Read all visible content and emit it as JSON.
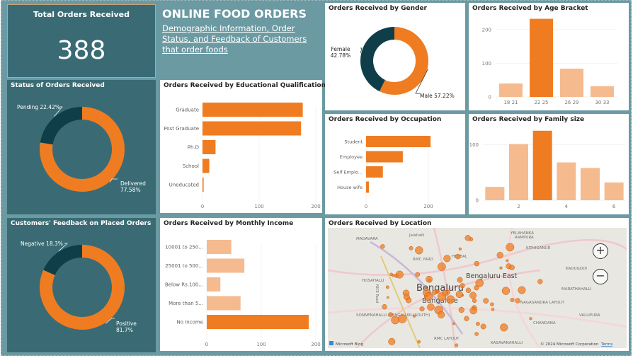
{
  "colors": {
    "orange": "#f07c22",
    "light_orange": "#f6ba8f",
    "dark_teal": "#0f3e48",
    "panel_teal": "#3a6b74",
    "background": "#6b9aa2"
  },
  "header": {
    "title": "ONLINE FOOD ORDERS",
    "subtitle": "Demographic Information, Order Status, and Feedback of Customers that order foods"
  },
  "kpi": {
    "title": "Total Orders Received",
    "value": "388"
  },
  "map": {
    "title": "Orders Received by Location",
    "labels": [
      "Jalahalli",
      "MADAVARA",
      "RAMPURA",
      "KITHIGANUR",
      "RMC YARD",
      "HEBBAL",
      "Bengaluru East",
      "KADUGODI",
      "HOSAHALLI",
      "Bengaluru",
      "Bangalore",
      "MARATHAHALLI",
      "NAGASANDRA LAYOUT",
      "VALLIPURA",
      "SONNENAHALLI (BENGALURU SOUTH)",
      "CHANDANA",
      "YELAHANKA",
      "RMC LAYOUT",
      "KASAVANAHALLI",
      "NICE Road"
    ],
    "attribution_left": "Microsoft Bing",
    "attribution_right": "© 2024 Microsoft Corporation",
    "terms": "Terms",
    "zoom_in": "+",
    "zoom_out": "−"
  },
  "chart_data": [
    {
      "id": "status",
      "type": "pie",
      "title": "Status of Orders Received",
      "labels": [
        "Delivered",
        "Pending"
      ],
      "values": [
        77.58,
        22.42
      ],
      "label_text": [
        "Delivered 77.58%",
        "Pending 22.42%"
      ],
      "colors": [
        "#f07c22",
        "#0f3e48"
      ]
    },
    {
      "id": "feedback",
      "type": "pie",
      "title": "Customers' Feedback on Placed Orders",
      "labels": [
        "Positive",
        "Negative"
      ],
      "values": [
        81.7,
        18.3
      ],
      "label_text": [
        "Positive 81.7%",
        "Negative 18.3%"
      ],
      "colors": [
        "#f07c22",
        "#0f3e48"
      ]
    },
    {
      "id": "gender",
      "type": "pie",
      "title": "Orders Received by Gender",
      "labels": [
        "Male",
        "Female"
      ],
      "values": [
        57.22,
        42.78
      ],
      "label_text": [
        "Male 57.22%",
        "Female 42.78%"
      ],
      "colors": [
        "#f07c22",
        "#0f3e48"
      ]
    },
    {
      "id": "education",
      "type": "bar",
      "orientation": "horizontal",
      "title": "Orders Received by Educational Qualifications",
      "categories": [
        "Graduate",
        "Post Graduate",
        "Ph.D",
        "School",
        "Uneducated"
      ],
      "values": [
        177,
        174,
        23,
        12,
        2
      ],
      "xlim": [
        0,
        200
      ],
      "ticks": [
        0,
        100,
        200
      ]
    },
    {
      "id": "income",
      "type": "bar",
      "orientation": "horizontal",
      "title": "Orders Received by Monthly Income",
      "categories": [
        "10001 to 250...",
        "25001 to 500...",
        "Below Rs.100...",
        "More than 5...",
        "No Income"
      ],
      "values": [
        45,
        69,
        25,
        62,
        187
      ],
      "xlim": [
        0,
        200
      ],
      "ticks": [
        0,
        100,
        200
      ]
    },
    {
      "id": "occupation",
      "type": "bar",
      "orientation": "horizontal",
      "title": "Orders Received by Occupation",
      "categories": [
        "Student",
        "Employee",
        "Self Emplo...",
        "House wife"
      ],
      "values": [
        207,
        118,
        54,
        9
      ],
      "xlim": [
        0,
        200
      ],
      "ticks": [
        0,
        200
      ]
    },
    {
      "id": "age",
      "type": "bar",
      "orientation": "vertical",
      "title": "Orders Received by Age Bracket",
      "categories": [
        "18 - 21",
        "22 - 25",
        "26 - 29",
        "30 - 33"
      ],
      "category_labels": [
        "18  21",
        "22  25",
        "26  29",
        "30  33"
      ],
      "values": [
        40,
        232,
        84,
        32
      ],
      "ylim": [
        0,
        250
      ],
      "ticks": [
        0,
        100,
        200
      ],
      "highlight_index": 1
    },
    {
      "id": "family",
      "type": "bar",
      "orientation": "vertical",
      "title": "Orders Received by Family size",
      "x": [
        1,
        2,
        3,
        4,
        5,
        6
      ],
      "values": [
        24,
        101,
        125,
        68,
        58,
        32
      ],
      "ylim": [
        0,
        140
      ],
      "ticks": [
        0,
        100
      ],
      "xticks": [
        2,
        4,
        6
      ],
      "highlight_index": 2
    }
  ]
}
